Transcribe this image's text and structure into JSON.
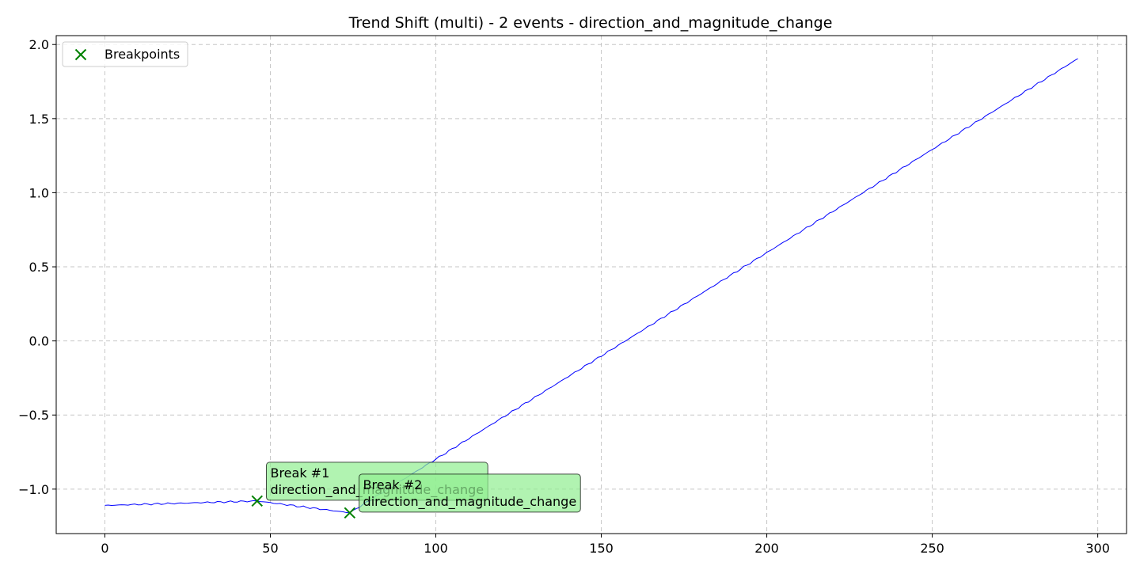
{
  "chart_data": {
    "type": "line",
    "title": "Trend Shift (multi) - 2 events - direction_and_magnitude_change",
    "xlabel": "",
    "ylabel": "",
    "xlim": [
      -14.7,
      308.7
    ],
    "ylim": [
      -1.3,
      2.06
    ],
    "x_ticks": [
      0,
      50,
      100,
      150,
      200,
      250,
      300
    ],
    "y_ticks": [
      -1.0,
      -0.5,
      0.0,
      0.5,
      1.0,
      1.5,
      2.0
    ],
    "y_tick_labels": [
      "−1.0",
      "−0.5",
      "0.0",
      "0.5",
      "1.0",
      "1.5",
      "2.0"
    ],
    "grid": true,
    "legend_position": "top-left",
    "series": [
      {
        "color": "#0000ff",
        "segments": [
          {
            "x_start": 0,
            "x_end": 46,
            "y_start": -1.11,
            "y_end": -1.08
          },
          {
            "x_start": 46,
            "x_end": 74,
            "y_start": -1.08,
            "y_end": -1.16
          },
          {
            "x_start": 74,
            "x_end": 294,
            "y_start": -1.16,
            "y_end": 1.905
          }
        ]
      }
    ],
    "breakpoints": {
      "legend_label": "Breakpoints",
      "color": "#008000",
      "points": [
        {
          "x": 46,
          "y": -1.08
        },
        {
          "x": 74,
          "y": -1.16
        }
      ]
    },
    "annotations": [
      {
        "line1": "Break #1",
        "line2": "direction_and_magnitude_change",
        "x": 50,
        "y": -0.84
      },
      {
        "line1": "Break #2",
        "line2": "direction_and_magnitude_change",
        "x": 78,
        "y": -0.92
      }
    ]
  }
}
